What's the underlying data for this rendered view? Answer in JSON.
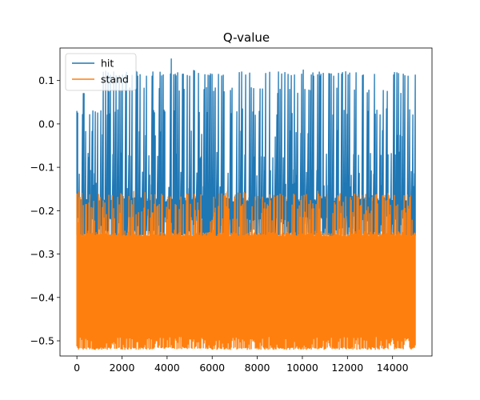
{
  "chart_data": {
    "type": "line",
    "title": "Q-value",
    "xlabel": "",
    "ylabel": "",
    "xlim": [
      -750,
      15750
    ],
    "ylim": [
      -0.535,
      0.175
    ],
    "x_ticks": [
      0,
      2000,
      4000,
      6000,
      8000,
      10000,
      12000,
      14000
    ],
    "y_ticks": [
      0.1,
      0.0,
      -0.1,
      -0.2,
      -0.3,
      -0.4,
      -0.5
    ],
    "y_tick_labels": [
      "0.1",
      "0.0",
      "−0.1",
      "−0.2",
      "−0.3",
      "−0.4",
      "−0.5"
    ],
    "legend_position": "top-left",
    "n_points": 15000,
    "series": [
      {
        "name": "hit",
        "color": "#1f77b4",
        "low_min": -0.26,
        "low_max": -0.21,
        "high_levels": [
          -0.18,
          -0.15,
          -0.12,
          -0.08,
          -0.03,
          0.02,
          0.07,
          0.11
        ],
        "max": 0.15,
        "peaks": [
          [
            4200,
            0.15
          ],
          [
            300,
            0.07
          ],
          [
            2700,
            0.11
          ],
          [
            3100,
            0.11
          ],
          [
            5000,
            0.11
          ],
          [
            10500,
            0.11
          ],
          [
            11400,
            0.11
          ],
          [
            14700,
            0.11
          ]
        ]
      },
      {
        "name": "stand",
        "color": "#ff7f0e",
        "low_min": -0.52,
        "low_max": -0.49,
        "high_levels": [
          -0.26,
          -0.23,
          -0.21,
          -0.2,
          -0.19,
          -0.17
        ],
        "max": -0.15
      }
    ]
  }
}
